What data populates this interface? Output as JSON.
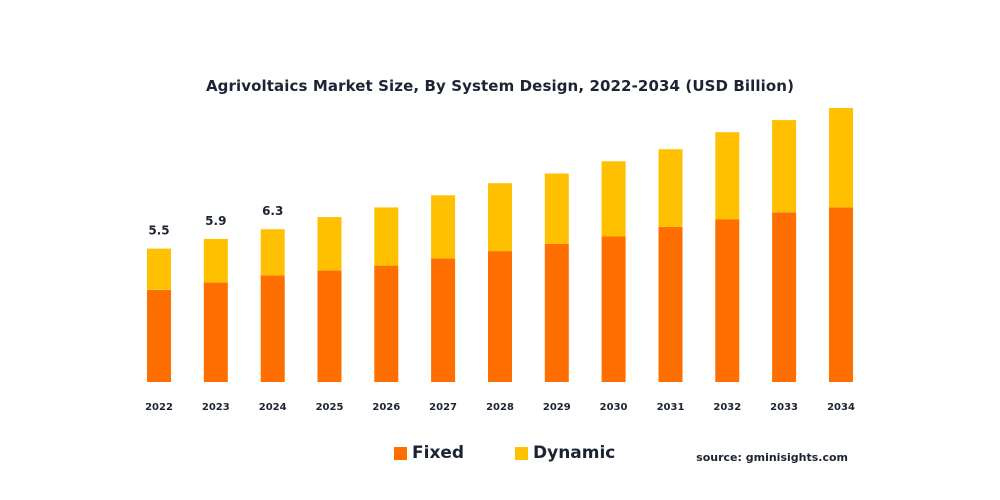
{
  "chart_data": {
    "type": "bar",
    "stacked": true,
    "title": "Agrivoltaics Market Size, By System Design, 2022-2034 (USD Billion)",
    "categories": [
      "2022",
      "2023",
      "2024",
      "2025",
      "2026",
      "2027",
      "2028",
      "2029",
      "2030",
      "2031",
      "2032",
      "2033",
      "2034"
    ],
    "series": [
      {
        "name": "Fixed",
        "color": "#ff6f00",
        "values": [
          3.8,
          4.1,
          4.4,
          4.6,
          4.8,
          5.1,
          5.4,
          5.7,
          6.0,
          6.4,
          6.7,
          7.0,
          7.2
        ]
      },
      {
        "name": "Dynamic",
        "color": "#ffc000",
        "values": [
          1.7,
          1.8,
          1.9,
          2.2,
          2.4,
          2.6,
          2.8,
          2.9,
          3.1,
          3.2,
          3.6,
          3.8,
          4.1
        ]
      }
    ],
    "totals_labels": [
      {
        "index": 0,
        "text": "5.5"
      },
      {
        "index": 1,
        "text": "5.9"
      },
      {
        "index": 2,
        "text": "6.3"
      }
    ],
    "ylim": [
      0,
      11.3
    ],
    "xlabel": "",
    "ylabel": "",
    "legend_position": "bottom",
    "grid": false
  },
  "legend": {
    "items": [
      {
        "label": "Fixed",
        "color": "#ff6f00"
      },
      {
        "label": "Dynamic",
        "color": "#ffc000"
      }
    ]
  },
  "source": "source: gminisights.com"
}
